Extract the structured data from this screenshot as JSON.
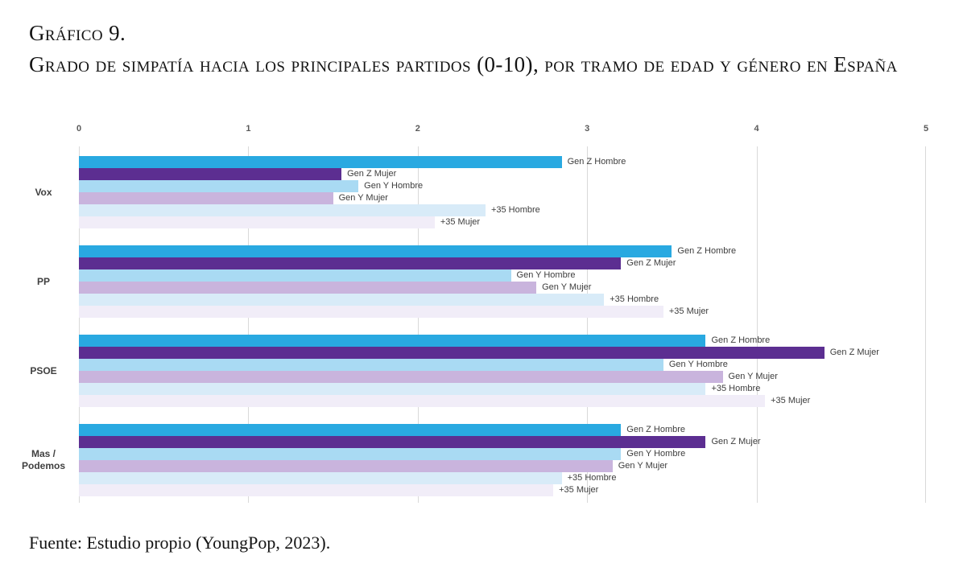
{
  "title": {
    "line1": "Gráfico 9.",
    "line2": "Grado de simpatía hacia los principales partidos (0-10), por tramo de edad y género en España"
  },
  "source": "Fuente: Estudio propio (YoungPop, 2023).",
  "chart_data": {
    "type": "bar",
    "orientation": "horizontal",
    "title": "Grado de simpatía hacia los principales partidos (0-10), por tramo de edad y género en España",
    "xlabel": "",
    "ylabel": "",
    "xlim": [
      0,
      5
    ],
    "x_ticks": [
      "0",
      "1",
      "2",
      "3",
      "4",
      "5"
    ],
    "grid": true,
    "legend": "none (series name labeled at end of each bar)",
    "categories": [
      "Vox",
      "PP",
      "PSOE",
      "Mas / Podemos"
    ],
    "series_labels": [
      "Gen Z Hombre",
      "Gen Z Mujer",
      "Gen Y Hombre",
      "Gen Y Mujer",
      "+35 Hombre",
      "+35 Mujer"
    ],
    "series_colors": [
      "#29A9E1",
      "#5C2E91",
      "#A9DAF3",
      "#C9B4DD",
      "#D8EBF8",
      "#F1EDF8"
    ],
    "groups": [
      {
        "category": "Vox",
        "values": [
          2.85,
          1.55,
          1.65,
          1.5,
          2.4,
          2.1
        ]
      },
      {
        "category": "PP",
        "values": [
          3.5,
          3.2,
          2.55,
          2.7,
          3.1,
          3.45
        ]
      },
      {
        "category": "PSOE",
        "values": [
          3.7,
          4.4,
          3.45,
          3.8,
          3.7,
          4.05
        ]
      },
      {
        "category": "Mas / Podemos",
        "values": [
          3.2,
          3.7,
          3.2,
          3.15,
          2.85,
          2.8
        ]
      }
    ]
  },
  "colors": {
    "gridline": "#d9d9d9",
    "tick_text": "#595959",
    "category_text": "#404040",
    "bar_label_text": "#3d3d3d",
    "title_text": "#141414"
  }
}
